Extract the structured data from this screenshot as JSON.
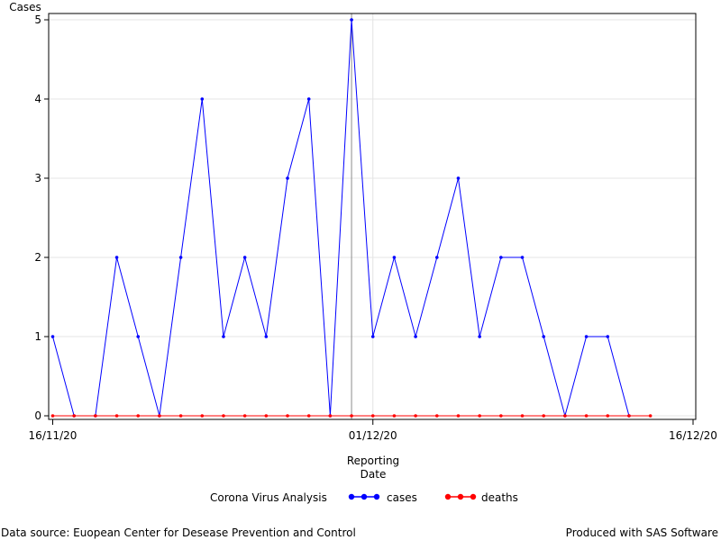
{
  "chart_data": {
    "type": "line",
    "ylabel": "Cases",
    "xlabel_line1": "Reporting",
    "xlabel_line2": "Date",
    "y_ticks": [
      "0",
      "1",
      "2",
      "3",
      "4",
      "5"
    ],
    "x_ticks": [
      "16/11/20",
      "01/12/20",
      "16/12/20"
    ],
    "x_start": "16/11/20",
    "x_end": "16/12/20",
    "ylim": [
      0,
      5
    ],
    "grid": true,
    "reference_line_date": "30/11/20",
    "legend_title": "Corona Virus Analysis",
    "legend_placement": "bottom",
    "series": [
      {
        "name": "cases",
        "color": "#0000ff",
        "x": [
          "16/11/20",
          "17/11/20",
          "18/11/20",
          "19/11/20",
          "20/11/20",
          "21/11/20",
          "22/11/20",
          "23/11/20",
          "24/11/20",
          "25/11/20",
          "26/11/20",
          "27/11/20",
          "28/11/20",
          "29/11/20",
          "30/11/20",
          "01/12/20",
          "02/12/20",
          "03/12/20",
          "04/12/20",
          "05/12/20",
          "06/12/20",
          "07/12/20",
          "08/12/20",
          "09/12/20",
          "10/12/20",
          "11/12/20",
          "12/12/20",
          "13/12/20"
        ],
        "values": [
          1,
          0,
          0,
          2,
          1,
          0,
          2,
          4,
          1,
          2,
          1,
          3,
          4,
          0,
          5,
          1,
          2,
          1,
          2,
          3,
          1,
          2,
          2,
          1,
          0,
          1,
          1,
          0
        ]
      },
      {
        "name": "deaths",
        "color": "#ff0000",
        "x": [
          "16/11/20",
          "17/11/20",
          "18/11/20",
          "19/11/20",
          "20/11/20",
          "21/11/20",
          "22/11/20",
          "23/11/20",
          "24/11/20",
          "25/11/20",
          "26/11/20",
          "27/11/20",
          "28/11/20",
          "29/11/20",
          "30/11/20",
          "01/12/20",
          "02/12/20",
          "03/12/20",
          "04/12/20",
          "05/12/20",
          "06/12/20",
          "07/12/20",
          "08/12/20",
          "09/12/20",
          "10/12/20",
          "11/12/20",
          "12/12/20",
          "13/12/20",
          "14/12/20"
        ],
        "values": [
          0,
          0,
          0,
          0,
          0,
          0,
          0,
          0,
          0,
          0,
          0,
          0,
          0,
          0,
          0,
          0,
          0,
          0,
          0,
          0,
          0,
          0,
          0,
          0,
          0,
          0,
          0,
          0,
          0
        ]
      }
    ]
  },
  "footer": {
    "source": "Data source: Euopean Center for Desease Prevention and Control",
    "produced": "Produced with SAS Software"
  }
}
